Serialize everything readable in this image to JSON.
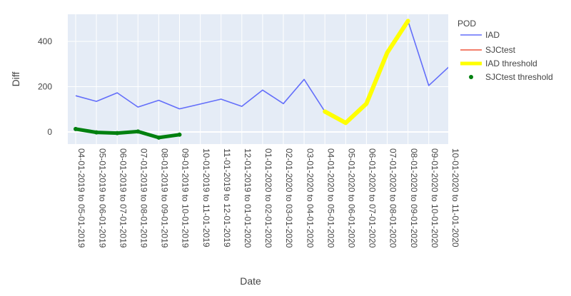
{
  "chart_data": {
    "type": "line",
    "xlabel": "Date",
    "ylabel": "Diff",
    "legend_title": "POD",
    "legend_position": "right",
    "grid": true,
    "ylim": [
      -55,
      520
    ],
    "y_ticks": [
      0,
      200,
      400
    ],
    "categories": [
      "04-01-2019 to 05-01-2019",
      "05-01-2019 to 06-01-2019",
      "06-01-2019 to 07-01-2019",
      "07-01-2019 to 08-01-2019",
      "08-01-2019 to 09-01-2019",
      "09-01-2019 to 10-01-2019",
      "10-01-2019 to 11-01-2019",
      "11-01-2019 to 12-01-2019",
      "12-01-2019 to 01-01-2020",
      "01-01-2020 to 02-01-2020",
      "02-01-2020 to 03-01-2020",
      "03-01-2020 to 04-01-2020",
      "04-01-2020 to 05-01-2020",
      "05-01-2020 to 06-01-2020",
      "06-01-2020 to 07-01-2020",
      "07-01-2020 to 08-01-2020",
      "08-01-2020 to 09-01-2020",
      "09-01-2020 to 10-01-2020",
      "10-01-2020 to 11-01-2020"
    ],
    "series": [
      {
        "name": "IAD",
        "mode": "line",
        "color": "#636efa",
        "values": [
          160,
          135,
          173,
          110,
          140,
          102,
          123,
          145,
          113,
          185,
          125,
          232,
          90,
          40,
          125,
          350,
          490,
          205,
          290
        ]
      },
      {
        "name": "SJCtest",
        "mode": "line",
        "color": "#ef553b",
        "values": [
          13,
          -2,
          -5,
          2,
          -25,
          -12,
          null,
          null,
          null,
          null,
          null,
          null,
          null,
          null,
          null,
          null,
          null,
          null,
          null
        ]
      },
      {
        "name": "IAD threshold",
        "mode": "thick-line",
        "color": "#ffff00",
        "values": [
          null,
          null,
          null,
          null,
          null,
          null,
          null,
          null,
          null,
          null,
          null,
          null,
          90,
          40,
          125,
          350,
          490,
          null,
          null
        ]
      },
      {
        "name": "SJCtest threshold",
        "mode": "markers",
        "color": "#00800f",
        "values": [
          13,
          -2,
          -5,
          2,
          -25,
          -12,
          null,
          null,
          null,
          null,
          null,
          null,
          null,
          null,
          null,
          null,
          null,
          null,
          null
        ]
      }
    ]
  }
}
